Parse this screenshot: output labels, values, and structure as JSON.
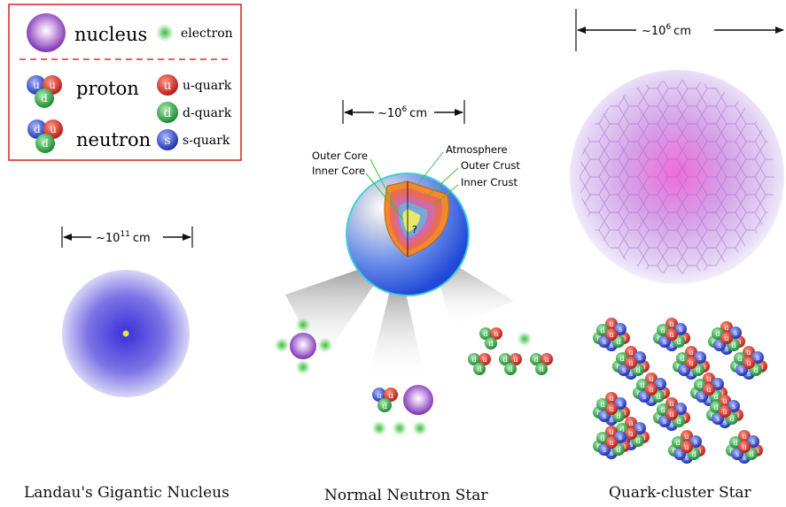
{
  "legend": {
    "nucleus": "nucleus",
    "electron": "electron",
    "proton": "proton",
    "neutron": "neutron",
    "u_quark": "u-quark",
    "d_quark": "d-quark",
    "s_quark": "s-quark",
    "border_color": "#d9302b"
  },
  "quark_letters": {
    "u": "u",
    "d": "d",
    "s": "s"
  },
  "quark_colors": {
    "u": "#d8302a",
    "d": "#2e9e3e",
    "s": "#2e48c8"
  },
  "landau": {
    "size_label_base": "~10",
    "size_label_exp": "11",
    "size_label_unit": "cm",
    "caption": "Landau's Gigantic Nucleus"
  },
  "neutron_star": {
    "size_label_base": "~10",
    "size_label_exp": "6",
    "size_label_unit": "cm",
    "layers": {
      "outer_core": "Outer Core",
      "inner_core": "Inner Core",
      "atmosphere": "Atmosphere",
      "outer_crust": "Outer Crust",
      "inner_crust": "Inner Crust",
      "unknown_mark": "?"
    },
    "caption": "Normal Neutron Star"
  },
  "quark_star": {
    "size_label_base": "~10",
    "size_label_exp": "6",
    "size_label_unit": "cm",
    "caption": "Quark-cluster Star"
  }
}
